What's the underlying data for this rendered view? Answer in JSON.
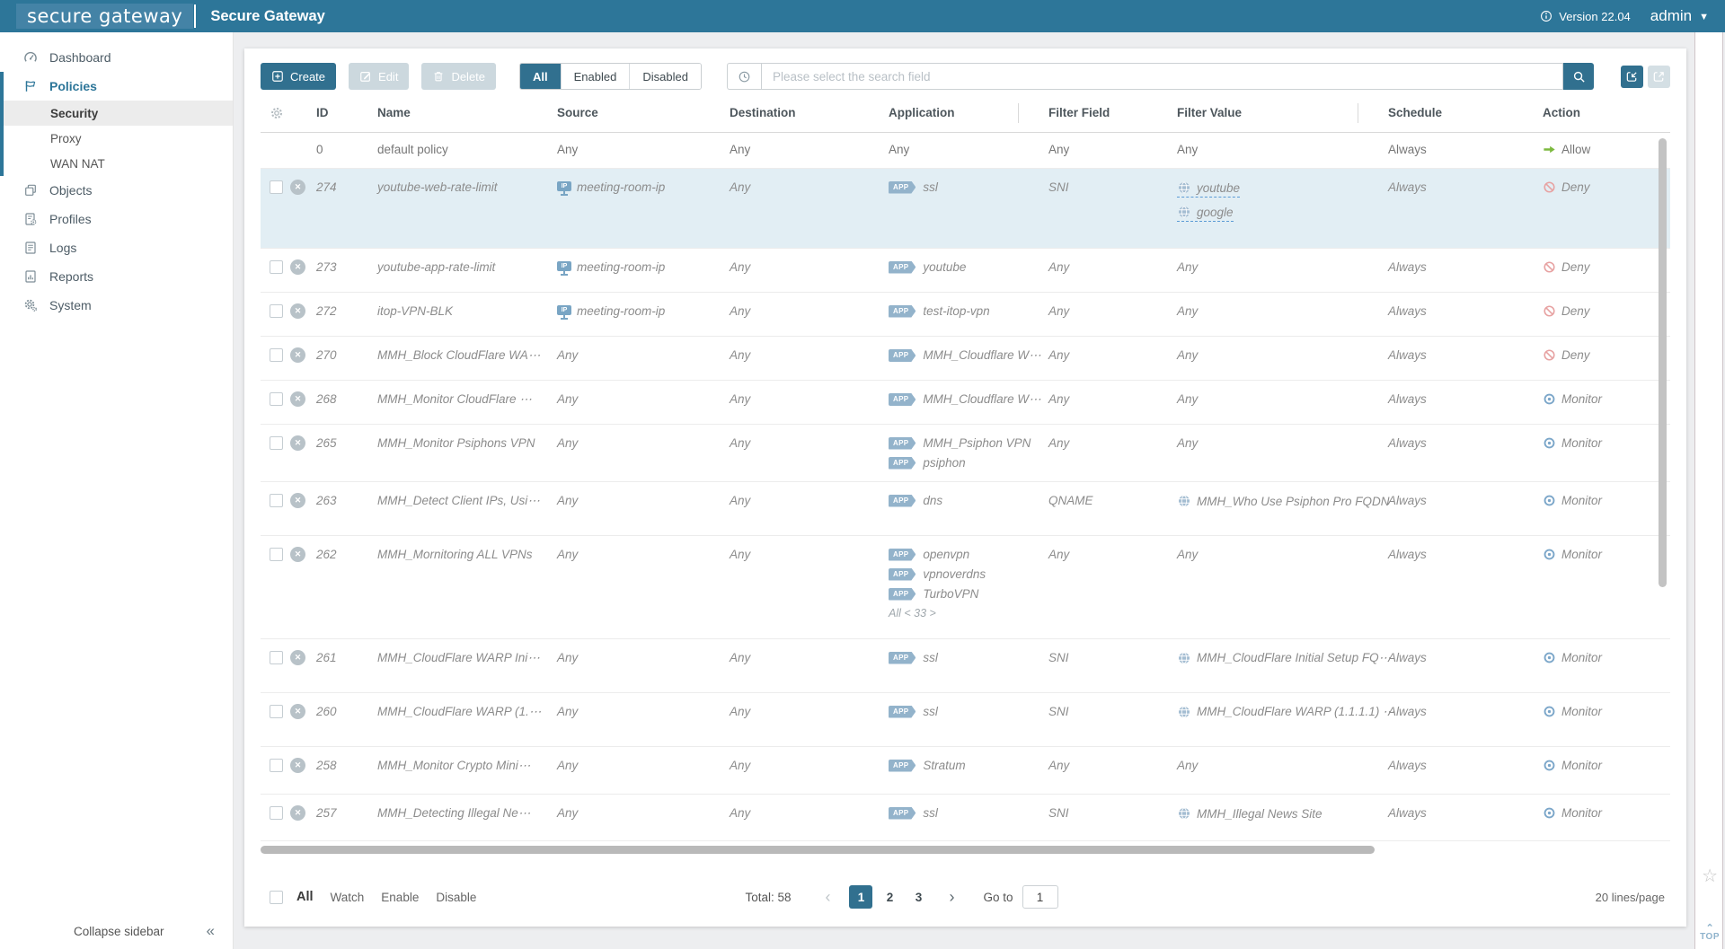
{
  "topbar": {
    "logo_text": "secure gateway",
    "app_title": "Secure Gateway",
    "info_icon": "info-icon",
    "version_label": "Version 22.04",
    "user_name": "admin",
    "user_chevron_icon": "chevron-down-icon",
    "accent_color": "#2d7699"
  },
  "sidebar": {
    "items": [
      {
        "label": "Dashboard",
        "icon": "dashboard-gauge-icon",
        "active": false
      },
      {
        "label": "Policies",
        "icon": "policies-flag-icon",
        "active": true,
        "children": [
          {
            "label": "Security",
            "active": true
          },
          {
            "label": "Proxy",
            "active": false
          },
          {
            "label": "WAN NAT",
            "active": false
          }
        ]
      },
      {
        "label": "Objects",
        "icon": "objects-icon",
        "active": false
      },
      {
        "label": "Profiles",
        "icon": "profiles-icon",
        "active": false
      },
      {
        "label": "Logs",
        "icon": "logs-icon",
        "active": false
      },
      {
        "label": "Reports",
        "icon": "reports-icon",
        "active": false
      },
      {
        "label": "System",
        "icon": "system-gear-icon",
        "active": false
      }
    ],
    "collapse_label": "Collapse sidebar",
    "collapse_icon": "double-chevron-left-icon"
  },
  "toolbar": {
    "create_label": "Create",
    "create_icon": "plus-square-icon",
    "edit_label": "Edit",
    "edit_icon": "edit-icon",
    "delete_label": "Delete",
    "delete_icon": "trash-icon",
    "filter_tabs": [
      {
        "label": "All",
        "active": true
      },
      {
        "label": "Enabled",
        "active": false
      },
      {
        "label": "Disabled",
        "active": false
      }
    ],
    "search_history_icon": "clock-icon",
    "search_placeholder": "Please select the search field",
    "search_icon": "search-icon",
    "import_icon": "import-icon",
    "export_icon": "export-icon"
  },
  "table": {
    "settings_icon": "gear-icon",
    "columns": [
      "ID",
      "Name",
      "Source",
      "Destination",
      "Application",
      "Filter Field",
      "Filter Value",
      "Schedule",
      "Action"
    ],
    "status_icon": "disabled-x-icon",
    "source_icon": "ip-screen-icon",
    "app_badge_label": "APP",
    "value_icon": "globe-icon",
    "rows": [
      {
        "id": "0",
        "name": "default policy",
        "default": true,
        "highlighted": false,
        "source": {
          "icon": null,
          "text": "Any"
        },
        "destination": "Any",
        "apps": [
          {
            "tag": false,
            "text": "Any"
          }
        ],
        "app_more": null,
        "filter_field": "Any",
        "filter_values": [
          {
            "icon": null,
            "text": "Any",
            "underline": false
          }
        ],
        "schedule": "Always",
        "action": {
          "type": "allow",
          "icon": "allow-arrow-icon",
          "label": "Allow"
        }
      },
      {
        "id": "274",
        "name": "youtube-web-rate-limit",
        "default": false,
        "highlighted": true,
        "source": {
          "icon": "ip-screen-icon",
          "text": "meeting-room-ip"
        },
        "destination": "Any",
        "apps": [
          {
            "tag": true,
            "text": "ssl"
          }
        ],
        "app_more": null,
        "filter_field": "SNI",
        "filter_values": [
          {
            "icon": "globe-icon",
            "text": "youtube",
            "underline": true
          },
          {
            "icon": "globe-icon",
            "text": "google",
            "underline": true
          }
        ],
        "schedule": "Always",
        "action": {
          "type": "deny",
          "icon": "deny-icon",
          "label": "Deny"
        }
      },
      {
        "id": "273",
        "name": "youtube-app-rate-limit",
        "default": false,
        "highlighted": false,
        "source": {
          "icon": "ip-screen-icon",
          "text": "meeting-room-ip"
        },
        "destination": "Any",
        "apps": [
          {
            "tag": true,
            "text": "youtube"
          }
        ],
        "app_more": null,
        "filter_field": "Any",
        "filter_values": [
          {
            "icon": null,
            "text": "Any",
            "underline": false
          }
        ],
        "schedule": "Always",
        "action": {
          "type": "deny",
          "icon": "deny-icon",
          "label": "Deny"
        }
      },
      {
        "id": "272",
        "name": "itop-VPN-BLK",
        "default": false,
        "highlighted": false,
        "source": {
          "icon": "ip-screen-icon",
          "text": "meeting-room-ip"
        },
        "destination": "Any",
        "apps": [
          {
            "tag": true,
            "text": "test-itop-vpn"
          }
        ],
        "app_more": null,
        "filter_field": "Any",
        "filter_values": [
          {
            "icon": null,
            "text": "Any",
            "underline": false
          }
        ],
        "schedule": "Always",
        "action": {
          "type": "deny",
          "icon": "deny-icon",
          "label": "Deny"
        }
      },
      {
        "id": "270",
        "name": "MMH_Block CloudFlare WA⋯",
        "default": false,
        "highlighted": false,
        "source": {
          "icon": null,
          "text": "Any"
        },
        "destination": "Any",
        "apps": [
          {
            "tag": true,
            "text": "MMH_Cloudflare W⋯"
          }
        ],
        "app_more": null,
        "filter_field": "Any",
        "filter_values": [
          {
            "icon": null,
            "text": "Any",
            "underline": false
          }
        ],
        "schedule": "Always",
        "action": {
          "type": "deny",
          "icon": "deny-icon",
          "label": "Deny"
        }
      },
      {
        "id": "268",
        "name": "MMH_Monitor CloudFlare ⋯",
        "default": false,
        "highlighted": false,
        "source": {
          "icon": null,
          "text": "Any"
        },
        "destination": "Any",
        "apps": [
          {
            "tag": true,
            "text": "MMH_Cloudflare W⋯"
          }
        ],
        "app_more": null,
        "filter_field": "Any",
        "filter_values": [
          {
            "icon": null,
            "text": "Any",
            "underline": false
          }
        ],
        "schedule": "Always",
        "action": {
          "type": "monitor",
          "icon": "monitor-eye-icon",
          "label": "Monitor"
        }
      },
      {
        "id": "265",
        "name": "MMH_Monitor Psiphons VPN",
        "default": false,
        "highlighted": false,
        "source": {
          "icon": null,
          "text": "Any"
        },
        "destination": "Any",
        "apps": [
          {
            "tag": true,
            "text": "MMH_Psiphon VPN"
          },
          {
            "tag": true,
            "text": "psiphon"
          }
        ],
        "app_more": null,
        "filter_field": "Any",
        "filter_values": [
          {
            "icon": null,
            "text": "Any",
            "underline": false
          }
        ],
        "schedule": "Always",
        "action": {
          "type": "monitor",
          "icon": "monitor-eye-icon",
          "label": "Monitor"
        }
      },
      {
        "id": "263",
        "name": "MMH_Detect Client IPs, Usi⋯",
        "default": false,
        "highlighted": false,
        "source": {
          "icon": null,
          "text": "Any"
        },
        "destination": "Any",
        "apps": [
          {
            "tag": true,
            "text": "dns"
          }
        ],
        "app_more": null,
        "filter_field": "QNAME",
        "filter_values": [
          {
            "icon": "globe-icon",
            "text": "MMH_Who Use Psiphon Pro FQDN",
            "underline": false
          }
        ],
        "schedule": "Always",
        "action": {
          "type": "monitor",
          "icon": "monitor-eye-icon",
          "label": "Monitor"
        }
      },
      {
        "id": "262",
        "name": "MMH_Mornitoring ALL VPNs",
        "default": false,
        "highlighted": false,
        "source": {
          "icon": null,
          "text": "Any"
        },
        "destination": "Any",
        "apps": [
          {
            "tag": true,
            "text": "openvpn"
          },
          {
            "tag": true,
            "text": "vpnoverdns"
          },
          {
            "tag": true,
            "text": "TurboVPN"
          }
        ],
        "app_more": "All < 33 >",
        "filter_field": "Any",
        "filter_values": [
          {
            "icon": null,
            "text": "Any",
            "underline": false
          }
        ],
        "schedule": "Always",
        "action": {
          "type": "monitor",
          "icon": "monitor-eye-icon",
          "label": "Monitor"
        }
      },
      {
        "id": "261",
        "name": "MMH_CloudFlare WARP Ini⋯",
        "default": false,
        "highlighted": false,
        "source": {
          "icon": null,
          "text": "Any"
        },
        "destination": "Any",
        "apps": [
          {
            "tag": true,
            "text": "ssl"
          }
        ],
        "app_more": null,
        "filter_field": "SNI",
        "filter_values": [
          {
            "icon": "globe-icon",
            "text": "MMH_CloudFlare Initial Setup FQ⋯",
            "underline": false
          }
        ],
        "schedule": "Always",
        "action": {
          "type": "monitor",
          "icon": "monitor-eye-icon",
          "label": "Monitor"
        }
      },
      {
        "id": "260",
        "name": "MMH_CloudFlare WARP (1.⋯",
        "default": false,
        "highlighted": false,
        "source": {
          "icon": null,
          "text": "Any"
        },
        "destination": "Any",
        "apps": [
          {
            "tag": true,
            "text": "ssl"
          }
        ],
        "app_more": null,
        "filter_field": "SNI",
        "filter_values": [
          {
            "icon": "globe-icon",
            "text": "MMH_CloudFlare WARP (1.1.1.1) ⋯",
            "underline": false
          }
        ],
        "schedule": "Always",
        "action": {
          "type": "monitor",
          "icon": "monitor-eye-icon",
          "label": "Monitor"
        }
      },
      {
        "id": "258",
        "name": "MMH_Monitor Crypto Mini⋯",
        "default": false,
        "highlighted": false,
        "source": {
          "icon": null,
          "text": "Any"
        },
        "destination": "Any",
        "apps": [
          {
            "tag": true,
            "text": "Stratum"
          }
        ],
        "app_more": null,
        "filter_field": "Any",
        "filter_values": [
          {
            "icon": null,
            "text": "Any",
            "underline": false
          }
        ],
        "schedule": "Always",
        "action": {
          "type": "monitor",
          "icon": "monitor-eye-icon",
          "label": "Monitor"
        }
      },
      {
        "id": "257",
        "name": "MMH_Detecting Illegal Ne⋯",
        "default": false,
        "highlighted": false,
        "source": {
          "icon": null,
          "text": "Any"
        },
        "destination": "Any",
        "apps": [
          {
            "tag": true,
            "text": "ssl"
          }
        ],
        "app_more": null,
        "filter_field": "SNI",
        "filter_values": [
          {
            "icon": "globe-icon",
            "text": "MMH_Illegal News Site",
            "underline": false
          }
        ],
        "schedule": "Always",
        "action": {
          "type": "monitor",
          "icon": "monitor-eye-icon",
          "label": "Monitor"
        }
      }
    ]
  },
  "footer": {
    "select_all_label": "All",
    "batch_actions": [
      "Watch",
      "Enable",
      "Disable"
    ],
    "total_label": "Total: 58",
    "prev_icon": "chevron-left-icon",
    "pages": [
      "1",
      "2",
      "3"
    ],
    "active_page": "1",
    "next_icon": "chevron-right-icon",
    "goto_label": "Go to",
    "goto_value": "1",
    "lines_per_page_label": "20 lines/page"
  },
  "page_widgets": {
    "star_icon": "star-icon",
    "top_button_label": "TOP",
    "top_button_icon": "chevron-up-icon"
  },
  "status_colors": {
    "allow": "#7cb93e",
    "deny": "#e7a2a2",
    "monitor": "#7ba6c9",
    "badge": "#93b3cb"
  }
}
